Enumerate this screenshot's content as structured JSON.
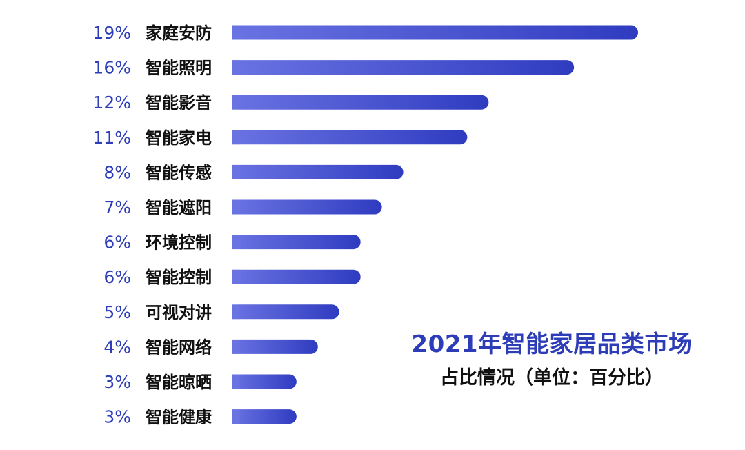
{
  "chart_data": {
    "type": "bar",
    "orientation": "horizontal",
    "title": "2021年智能家居品类市场",
    "subtitle": "占比情况（单位：百分比）",
    "categories": [
      "家庭安防",
      "智能照明",
      "智能影音",
      "智能家电",
      "智能传感",
      "智能遮阳",
      "环境控制",
      "智能控制",
      "可视对讲",
      "智能网络",
      "智能晾晒",
      "智能健康"
    ],
    "values": [
      19,
      16,
      12,
      11,
      8,
      7,
      6,
      6,
      5,
      4,
      3,
      3
    ],
    "value_labels": [
      "19%",
      "16%",
      "12%",
      "11%",
      "8%",
      "7%",
      "6%",
      "6%",
      "5%",
      "4%",
      "3%",
      "3%"
    ],
    "xlabel": "",
    "ylabel": "",
    "xlim": [
      0,
      19
    ],
    "grid": false,
    "legend": "none",
    "colors": {
      "bar_start": "#6a73e2",
      "bar_end": "#2f3cc0",
      "value_label": "#2d3db8",
      "category_label": "#111111",
      "title": "#2d3db8",
      "subtitle": "#111111"
    }
  }
}
